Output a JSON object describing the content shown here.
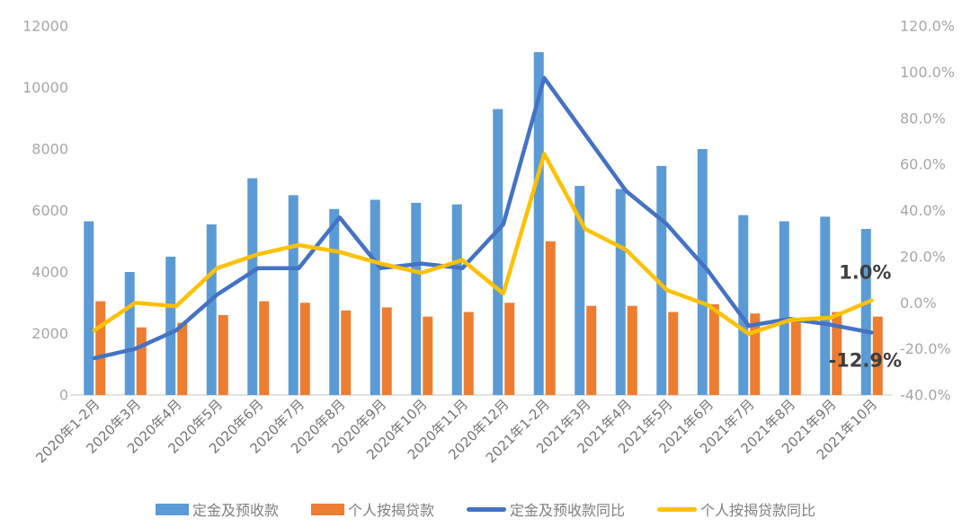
{
  "chart_data": {
    "type": "bar",
    "subtype": "combo-bar-line-dual-axis",
    "title": "",
    "grid": false,
    "legend_position": "bottom",
    "categories": [
      "2020年1-2月",
      "2020年3月",
      "2020年4月",
      "2020年5月",
      "2020年6月",
      "2020年7月",
      "2020年8月",
      "2020年9月",
      "2020年10月",
      "2020年11月",
      "2020年12月",
      "2021年1-2月",
      "2021年3月",
      "2021年4月",
      "2021年5月",
      "2021年6月",
      "2021年7月",
      "2021年8月",
      "2021年9月",
      "2021年10月"
    ],
    "left_axis": {
      "min": 0,
      "max": 12000,
      "step": 2000,
      "tick_labels": [
        "12000",
        "10000",
        "8000",
        "6000",
        "4000",
        "2000",
        "0"
      ]
    },
    "right_axis": {
      "min": -40,
      "max": 120,
      "step": 20,
      "tick_labels": [
        "120.0%",
        "100.0%",
        "80.0%",
        "60.0%",
        "40.0%",
        "20.0%",
        "0.0%",
        "-20.0%",
        "-40.0%"
      ]
    },
    "series": [
      {
        "name": "定金及预收款",
        "type": "bar",
        "axis": "left",
        "color": "#5B9BD5",
        "values": [
          5650,
          4000,
          4500,
          5550,
          7050,
          6500,
          6050,
          6350,
          6250,
          6200,
          9300,
          11150,
          6800,
          6700,
          7450,
          8000,
          5850,
          5650,
          5800,
          5400
        ]
      },
      {
        "name": "个人按揭贷款",
        "type": "bar",
        "axis": "left",
        "color": "#ED7D31",
        "values": [
          3050,
          2200,
          2350,
          2600,
          3050,
          3000,
          2750,
          2850,
          2550,
          2700,
          3000,
          5000,
          2900,
          2900,
          2700,
          2950,
          2650,
          2500,
          2700,
          2550
        ]
      },
      {
        "name": "定金及预收款同比",
        "type": "line",
        "axis": "right",
        "color": "#4472C4",
        "values": [
          -24,
          -20,
          -12,
          3.5,
          15,
          15,
          37,
          15,
          17,
          15,
          34,
          97.5,
          73,
          48.5,
          34,
          14,
          -10,
          -7,
          -9.5,
          -12.9
        ]
      },
      {
        "name": "个人按揭贷款同比",
        "type": "line",
        "axis": "right",
        "color": "#FFC000",
        "values": [
          -12,
          0,
          -1.5,
          15,
          21,
          25,
          22,
          17,
          13,
          18.5,
          4,
          64.5,
          32,
          23,
          5.5,
          -1,
          -13.5,
          -7.5,
          -6.5,
          1.0
        ]
      }
    ],
    "annotations": [
      {
        "text": "1.0%",
        "series": "个人按揭贷款同比",
        "category": "2021年10月"
      },
      {
        "text": "-12.9%",
        "series": "定金及预收款同比",
        "category": "2021年10月"
      }
    ]
  },
  "colors": {
    "background": "#ffffff",
    "axis_line": "#d9d9d9",
    "tick_text": "#a6a6a6",
    "category_text": "#757575",
    "legend_text": "#7f7f7f",
    "annotation_text": "#3f3f3f"
  }
}
